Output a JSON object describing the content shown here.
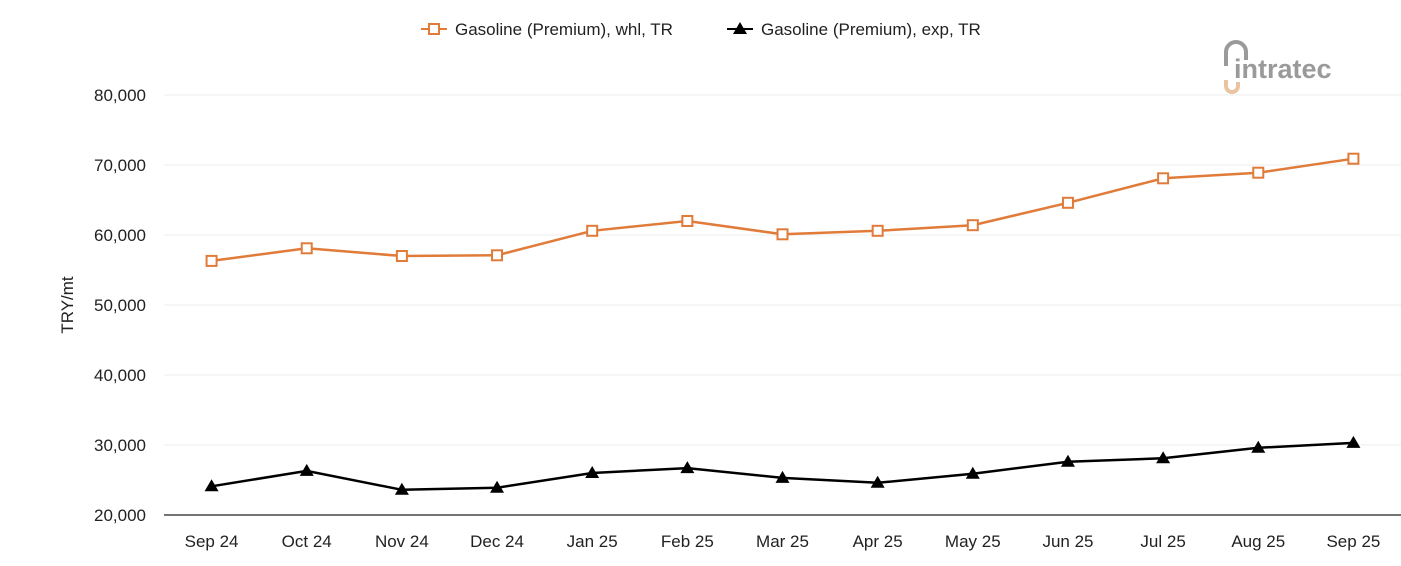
{
  "chart_data": {
    "type": "line",
    "title": "",
    "xlabel": "",
    "ylabel": "TRY/mt",
    "ylim": [
      20000,
      80000
    ],
    "yticks": [
      "20,000",
      "30,000",
      "40,000",
      "50,000",
      "60,000",
      "70,000",
      "80,000"
    ],
    "grid": true,
    "legend_position": "top-center",
    "categories": [
      "Sep 24",
      "Oct 24",
      "Nov 24",
      "Dec 24",
      "Jan 25",
      "Feb 25",
      "Mar 25",
      "Apr 25",
      "May 25",
      "Jun 25",
      "Jul 25",
      "Aug 25",
      "Sep 25"
    ],
    "series": [
      {
        "name": "Gasoline (Premium), whl, TR",
        "color": "#e07b39",
        "marker": "square-open",
        "values": [
          56300,
          58100,
          57000,
          57100,
          60600,
          62000,
          60100,
          60600,
          61400,
          64600,
          68100,
          68900,
          70900
        ]
      },
      {
        "name": "Gasoline (Premium), exp, TR",
        "color": "#000000",
        "marker": "triangle",
        "values": [
          24100,
          26300,
          23600,
          23900,
          26000,
          26700,
          25300,
          24600,
          25900,
          27600,
          28100,
          29600,
          30300
        ]
      }
    ]
  },
  "logo": {
    "text": "intratec"
  }
}
